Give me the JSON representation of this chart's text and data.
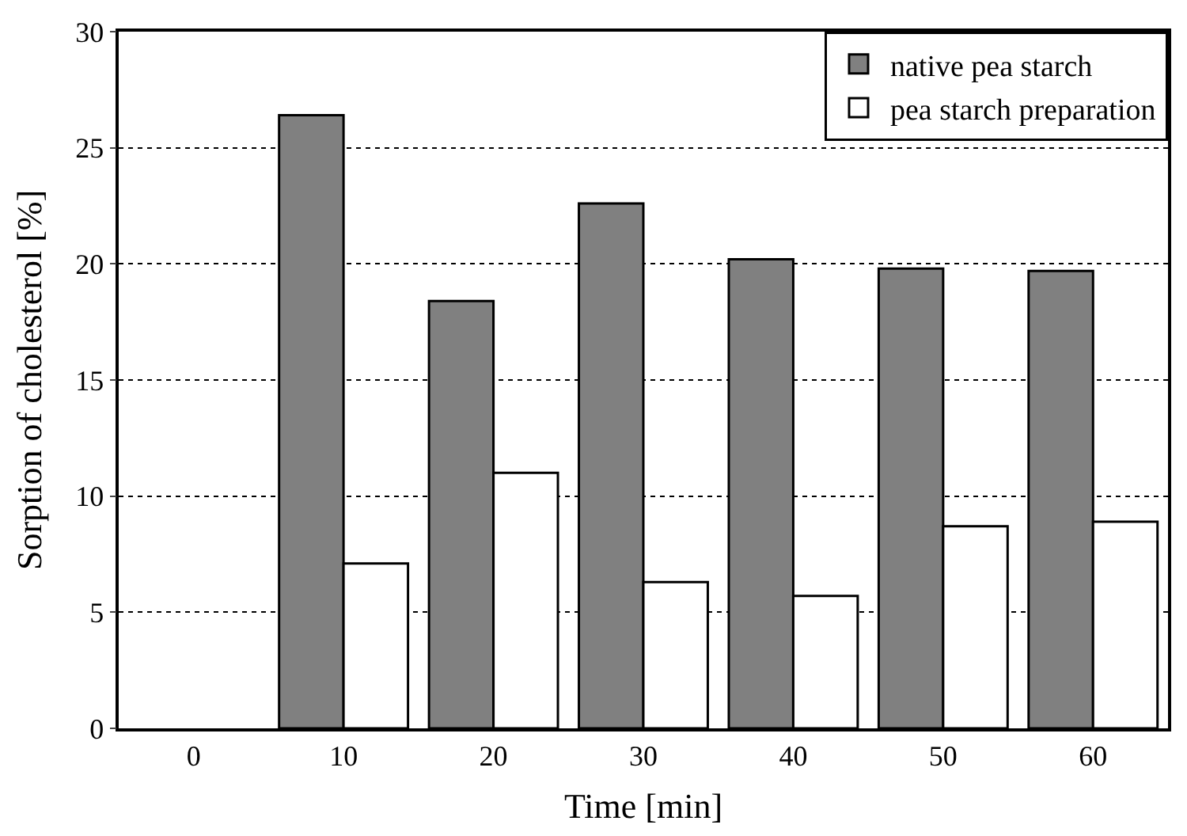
{
  "chart_data": {
    "type": "bar",
    "xlabel": "Time [min]",
    "ylabel": "Sorption of cholesterol [%]",
    "categories": [
      "0",
      "10",
      "20",
      "30",
      "40",
      "50",
      "60"
    ],
    "series": [
      {
        "name": "native pea starch",
        "color": "#808080",
        "values": [
          0,
          26.4,
          18.4,
          22.6,
          20.2,
          19.8,
          19.7
        ]
      },
      {
        "name": "pea starch preparation",
        "color": "#ffffff",
        "values": [
          0,
          7.1,
          11.0,
          6.3,
          5.7,
          8.7,
          8.9
        ]
      }
    ],
    "ylim": [
      0,
      30
    ],
    "yticks": [
      0,
      5,
      10,
      15,
      20,
      25,
      30
    ],
    "grid": "y",
    "legend": "top right"
  }
}
